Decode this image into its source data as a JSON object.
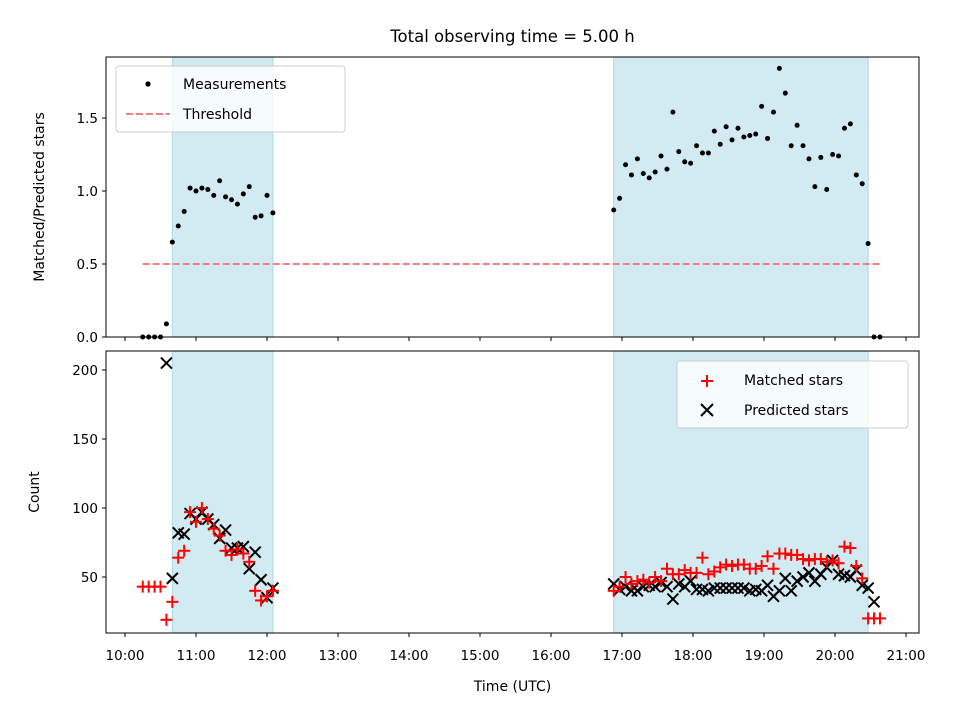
{
  "colors": {
    "shade": "#add8e6",
    "measurement": "#000000",
    "threshold": "#f08080",
    "matched": "#ff0000",
    "predicted": "#000000"
  },
  "chart_data": [
    {
      "type": "scatter",
      "title": "Total observing time = 5.00 h",
      "xlabel": "",
      "ylabel": "Matched/Predicted stars",
      "x_unit": "hours UTC",
      "xlim": [
        "10:00",
        "21:00"
      ],
      "ylim": [
        0,
        1.92
      ],
      "yticks": [
        "0.0",
        "0.5",
        "1.0",
        "1.5"
      ],
      "ytick_values": [
        0,
        0.5,
        1.0,
        1.5
      ],
      "xticks_shown": false,
      "legend_position": "upper left",
      "shaded_intervals": [
        [
          "10:40",
          "12:05"
        ],
        [
          "16:53",
          "20:28"
        ]
      ],
      "series": [
        {
          "name": "Measurements",
          "type": "scatter",
          "x": [
            "10:15",
            "10:20",
            "10:25",
            "10:30",
            "10:35",
            "10:40",
            "10:45",
            "10:50",
            "10:55",
            "11:00",
            "11:05",
            "11:10",
            "11:15",
            "11:20",
            "11:25",
            "11:30",
            "11:35",
            "11:40",
            "11:45",
            "11:50",
            "11:55",
            "12:00",
            "12:05",
            "16:53",
            "16:58",
            "17:03",
            "17:08",
            "17:13",
            "17:18",
            "17:23",
            "17:28",
            "17:33",
            "17:38",
            "17:43",
            "17:48",
            "17:53",
            "17:58",
            "18:03",
            "18:08",
            "18:13",
            "18:18",
            "18:23",
            "18:28",
            "18:33",
            "18:38",
            "18:43",
            "18:48",
            "18:53",
            "18:58",
            "19:03",
            "19:08",
            "19:13",
            "19:18",
            "19:23",
            "19:28",
            "19:33",
            "19:38",
            "19:43",
            "19:48",
            "19:53",
            "19:58",
            "20:03",
            "20:08",
            "20:13",
            "20:18",
            "20:23",
            "20:28",
            "20:33",
            "20:38"
          ],
          "y": [
            0.0,
            0.0,
            0.0,
            0.0,
            0.09,
            0.65,
            0.76,
            0.86,
            1.02,
            1.0,
            1.02,
            1.01,
            0.97,
            1.07,
            0.96,
            0.94,
            0.91,
            0.98,
            1.03,
            0.82,
            0.83,
            0.97,
            0.85,
            0.87,
            0.95,
            1.18,
            1.11,
            1.22,
            1.12,
            1.09,
            1.13,
            1.24,
            1.15,
            1.54,
            1.27,
            1.2,
            1.19,
            1.31,
            1.26,
            1.26,
            1.41,
            1.32,
            1.44,
            1.35,
            1.43,
            1.37,
            1.38,
            1.39,
            1.58,
            1.36,
            1.54,
            1.84,
            1.67,
            1.31,
            1.45,
            1.31,
            1.22,
            1.03,
            1.23,
            1.01,
            1.25,
            1.24,
            1.43,
            1.46,
            1.11,
            1.05,
            0.64,
            0.0,
            0.0
          ]
        },
        {
          "name": "Threshold",
          "type": "line",
          "style": "dashed",
          "x": [
            "10:15",
            "20:38"
          ],
          "y": [
            0.5,
            0.5
          ]
        }
      ]
    },
    {
      "type": "scatter",
      "title": "",
      "xlabel": "Time (UTC)",
      "ylabel": "Count",
      "x_unit": "hours UTC",
      "xlim": [
        "10:00",
        "21:00"
      ],
      "ylim": [
        9,
        216
      ],
      "yticks": [
        "50",
        "100",
        "150",
        "200"
      ],
      "ytick_values": [
        50,
        100,
        150,
        200
      ],
      "xticks": [
        "10:00",
        "11:00",
        "12:00",
        "13:00",
        "14:00",
        "15:00",
        "16:00",
        "17:00",
        "18:00",
        "19:00",
        "20:00",
        "21:00"
      ],
      "legend_position": "upper right",
      "shaded_intervals": [
        [
          "10:40",
          "12:05"
        ],
        [
          "16:53",
          "20:28"
        ]
      ],
      "series": [
        {
          "name": "Matched stars",
          "type": "scatter",
          "marker": "+",
          "x": [
            "10:15",
            "10:20",
            "10:25",
            "10:30",
            "10:35",
            "10:40",
            "10:45",
            "10:50",
            "10:55",
            "11:00",
            "11:05",
            "11:10",
            "11:15",
            "11:20",
            "11:25",
            "11:30",
            "11:35",
            "11:40",
            "11:45",
            "11:50",
            "11:55",
            "12:00",
            "12:05",
            "16:53",
            "16:58",
            "17:03",
            "17:08",
            "17:13",
            "17:18",
            "17:23",
            "17:28",
            "17:33",
            "17:38",
            "17:43",
            "17:48",
            "17:53",
            "17:58",
            "18:03",
            "18:08",
            "18:13",
            "18:18",
            "18:23",
            "18:28",
            "18:33",
            "18:38",
            "18:43",
            "18:48",
            "18:53",
            "18:58",
            "19:03",
            "19:08",
            "19:13",
            "19:18",
            "19:23",
            "19:28",
            "19:33",
            "19:38",
            "19:43",
            "19:48",
            "19:53",
            "19:58",
            "20:03",
            "20:08",
            "20:13",
            "20:18",
            "20:23",
            "20:28",
            "20:33",
            "20:38"
          ],
          "y": [
            43,
            43,
            43,
            43,
            19,
            32,
            64,
            69,
            97,
            90,
            100,
            92,
            85,
            80,
            69,
            66,
            70,
            67,
            61,
            40,
            33,
            36,
            40,
            40,
            43,
            50,
            45,
            47,
            48,
            46,
            50,
            47,
            56,
            52,
            52,
            55,
            53,
            53,
            64,
            52,
            54,
            57,
            59,
            58,
            59,
            59,
            56,
            56,
            58,
            65,
            56,
            67,
            67,
            66,
            66,
            63,
            62,
            63,
            63,
            61,
            62,
            60,
            72,
            71,
            58,
            49,
            20,
            20,
            20
          ]
        },
        {
          "name": "Predicted stars",
          "type": "scatter",
          "marker": "x",
          "x": [
            "10:35",
            "10:40",
            "10:45",
            "10:50",
            "10:55",
            "11:00",
            "11:05",
            "11:10",
            "11:15",
            "11:20",
            "11:25",
            "11:30",
            "11:35",
            "11:40",
            "11:45",
            "11:50",
            "11:55",
            "12:00",
            "12:05",
            "16:53",
            "16:58",
            "17:03",
            "17:08",
            "17:13",
            "17:18",
            "17:23",
            "17:28",
            "17:33",
            "17:38",
            "17:43",
            "17:48",
            "17:53",
            "17:58",
            "18:03",
            "18:08",
            "18:13",
            "18:18",
            "18:23",
            "18:28",
            "18:33",
            "18:38",
            "18:43",
            "18:48",
            "18:53",
            "18:58",
            "19:03",
            "19:08",
            "19:13",
            "19:18",
            "19:23",
            "19:28",
            "19:33",
            "19:38",
            "19:43",
            "19:48",
            "19:53",
            "19:58",
            "20:03",
            "20:08",
            "20:13",
            "20:18",
            "20:23",
            "20:28",
            "20:33"
          ],
          "y": [
            205,
            49,
            82,
            81,
            96,
            92,
            97,
            92,
            88,
            78,
            84,
            71,
            71,
            72,
            56,
            68,
            48,
            35,
            42,
            45,
            41,
            43,
            40,
            40,
            43,
            44,
            43,
            46,
            43,
            34,
            45,
            43,
            47,
            41,
            41,
            40,
            42,
            42,
            42,
            42,
            42,
            42,
            40,
            41,
            40,
            44,
            36,
            40,
            49,
            40,
            47,
            50,
            53,
            47,
            52,
            57,
            62,
            52,
            51,
            50,
            55,
            44,
            42,
            32
          ]
        }
      ]
    }
  ]
}
